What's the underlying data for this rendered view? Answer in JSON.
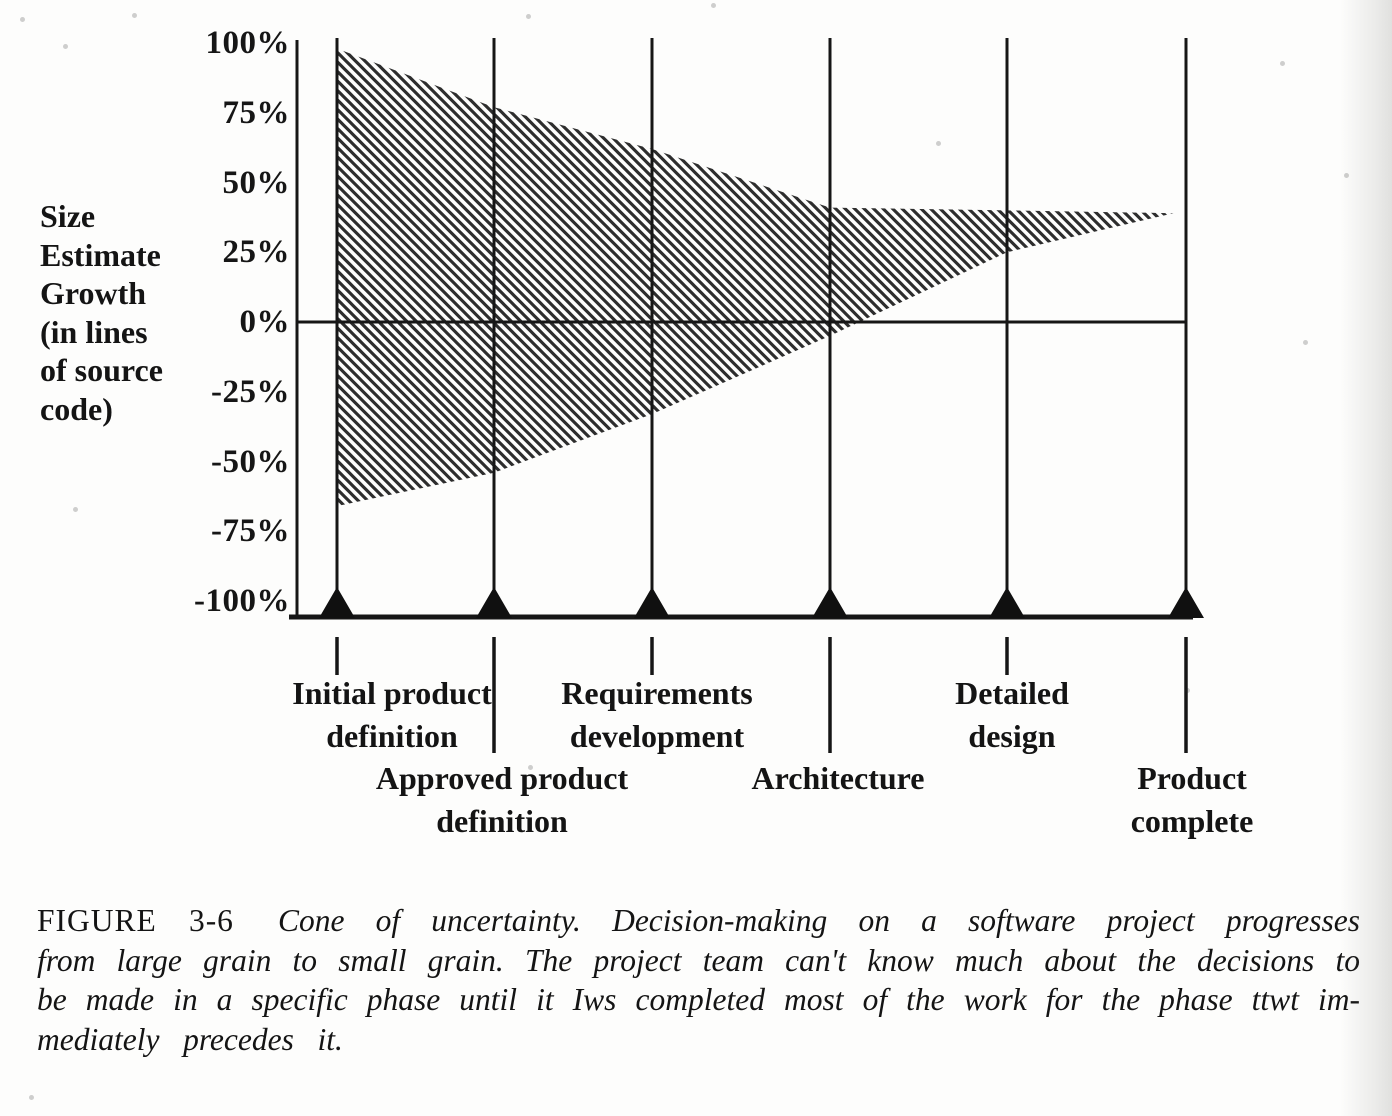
{
  "figure": {
    "caption_label": "FIGURE 3-6",
    "caption_lines": [
      "Cone of uncertainty. Decision-making on a software project progresses",
      "from large grain to small grain. The project team can't know much about the decisions to",
      "be made in a specific phase until it Iws completed most of the work for the phase ttwt im-",
      "mediately precedes it."
    ]
  },
  "chart_data": {
    "type": "area",
    "description": "Cone of uncertainty: hatched band of size-estimate uncertainty that narrows from project start to product completion",
    "ylabel": "Size Estimate Growth (in lines of source code)",
    "ylabel_lines": [
      "Size",
      "Estimate",
      "Growth",
      "(in lines",
      "of source",
      "code)"
    ],
    "ylim": [
      -100,
      100
    ],
    "y_ticks": [
      {
        "value": 100,
        "label": "100%"
      },
      {
        "value": 75,
        "label": "75%"
      },
      {
        "value": 50,
        "label": "50%"
      },
      {
        "value": 25,
        "label": "25%"
      },
      {
        "value": 0,
        "label": "0%"
      },
      {
        "value": -25,
        "label": "-25%"
      },
      {
        "value": -50,
        "label": "-50%"
      },
      {
        "value": -75,
        "label": "-75%"
      },
      {
        "value": -100,
        "label": "-100%"
      }
    ],
    "milestones": [
      {
        "label": "Initial product definition",
        "label_lines": [
          "Initial product",
          "definition"
        ],
        "row": "upper"
      },
      {
        "label": "Approved product definition",
        "label_lines": [
          "Approved product",
          "definition"
        ],
        "row": "lower"
      },
      {
        "label": "Requirements development",
        "label_lines": [
          "Requirements",
          "development"
        ],
        "row": "upper"
      },
      {
        "label": "Architecture",
        "label_lines": [
          "Architecture"
        ],
        "row": "lower"
      },
      {
        "label": "Detailed design",
        "label_lines": [
          "Detailed",
          "design"
        ],
        "row": "upper"
      },
      {
        "label": "Product complete",
        "label_lines": [
          "Product",
          "complete"
        ],
        "row": "lower"
      }
    ],
    "cone": {
      "x_milestone_units": [
        0,
        1,
        2,
        3,
        4,
        4.93
      ],
      "upper_pct": [
        98,
        77,
        62,
        41,
        40,
        39
      ],
      "lower_pct": [
        -66,
        -54,
        -33,
        -5,
        25,
        39
      ]
    },
    "gridlines": "vertical line at every milestone",
    "axis_markers": "solid black triangle on the baseline at every milestone",
    "hatch_direction": "diagonal, descending left to right",
    "colors": {
      "ink": "#161616",
      "hatch": "#2d2d2d",
      "paper": "#fdfdfc"
    }
  }
}
